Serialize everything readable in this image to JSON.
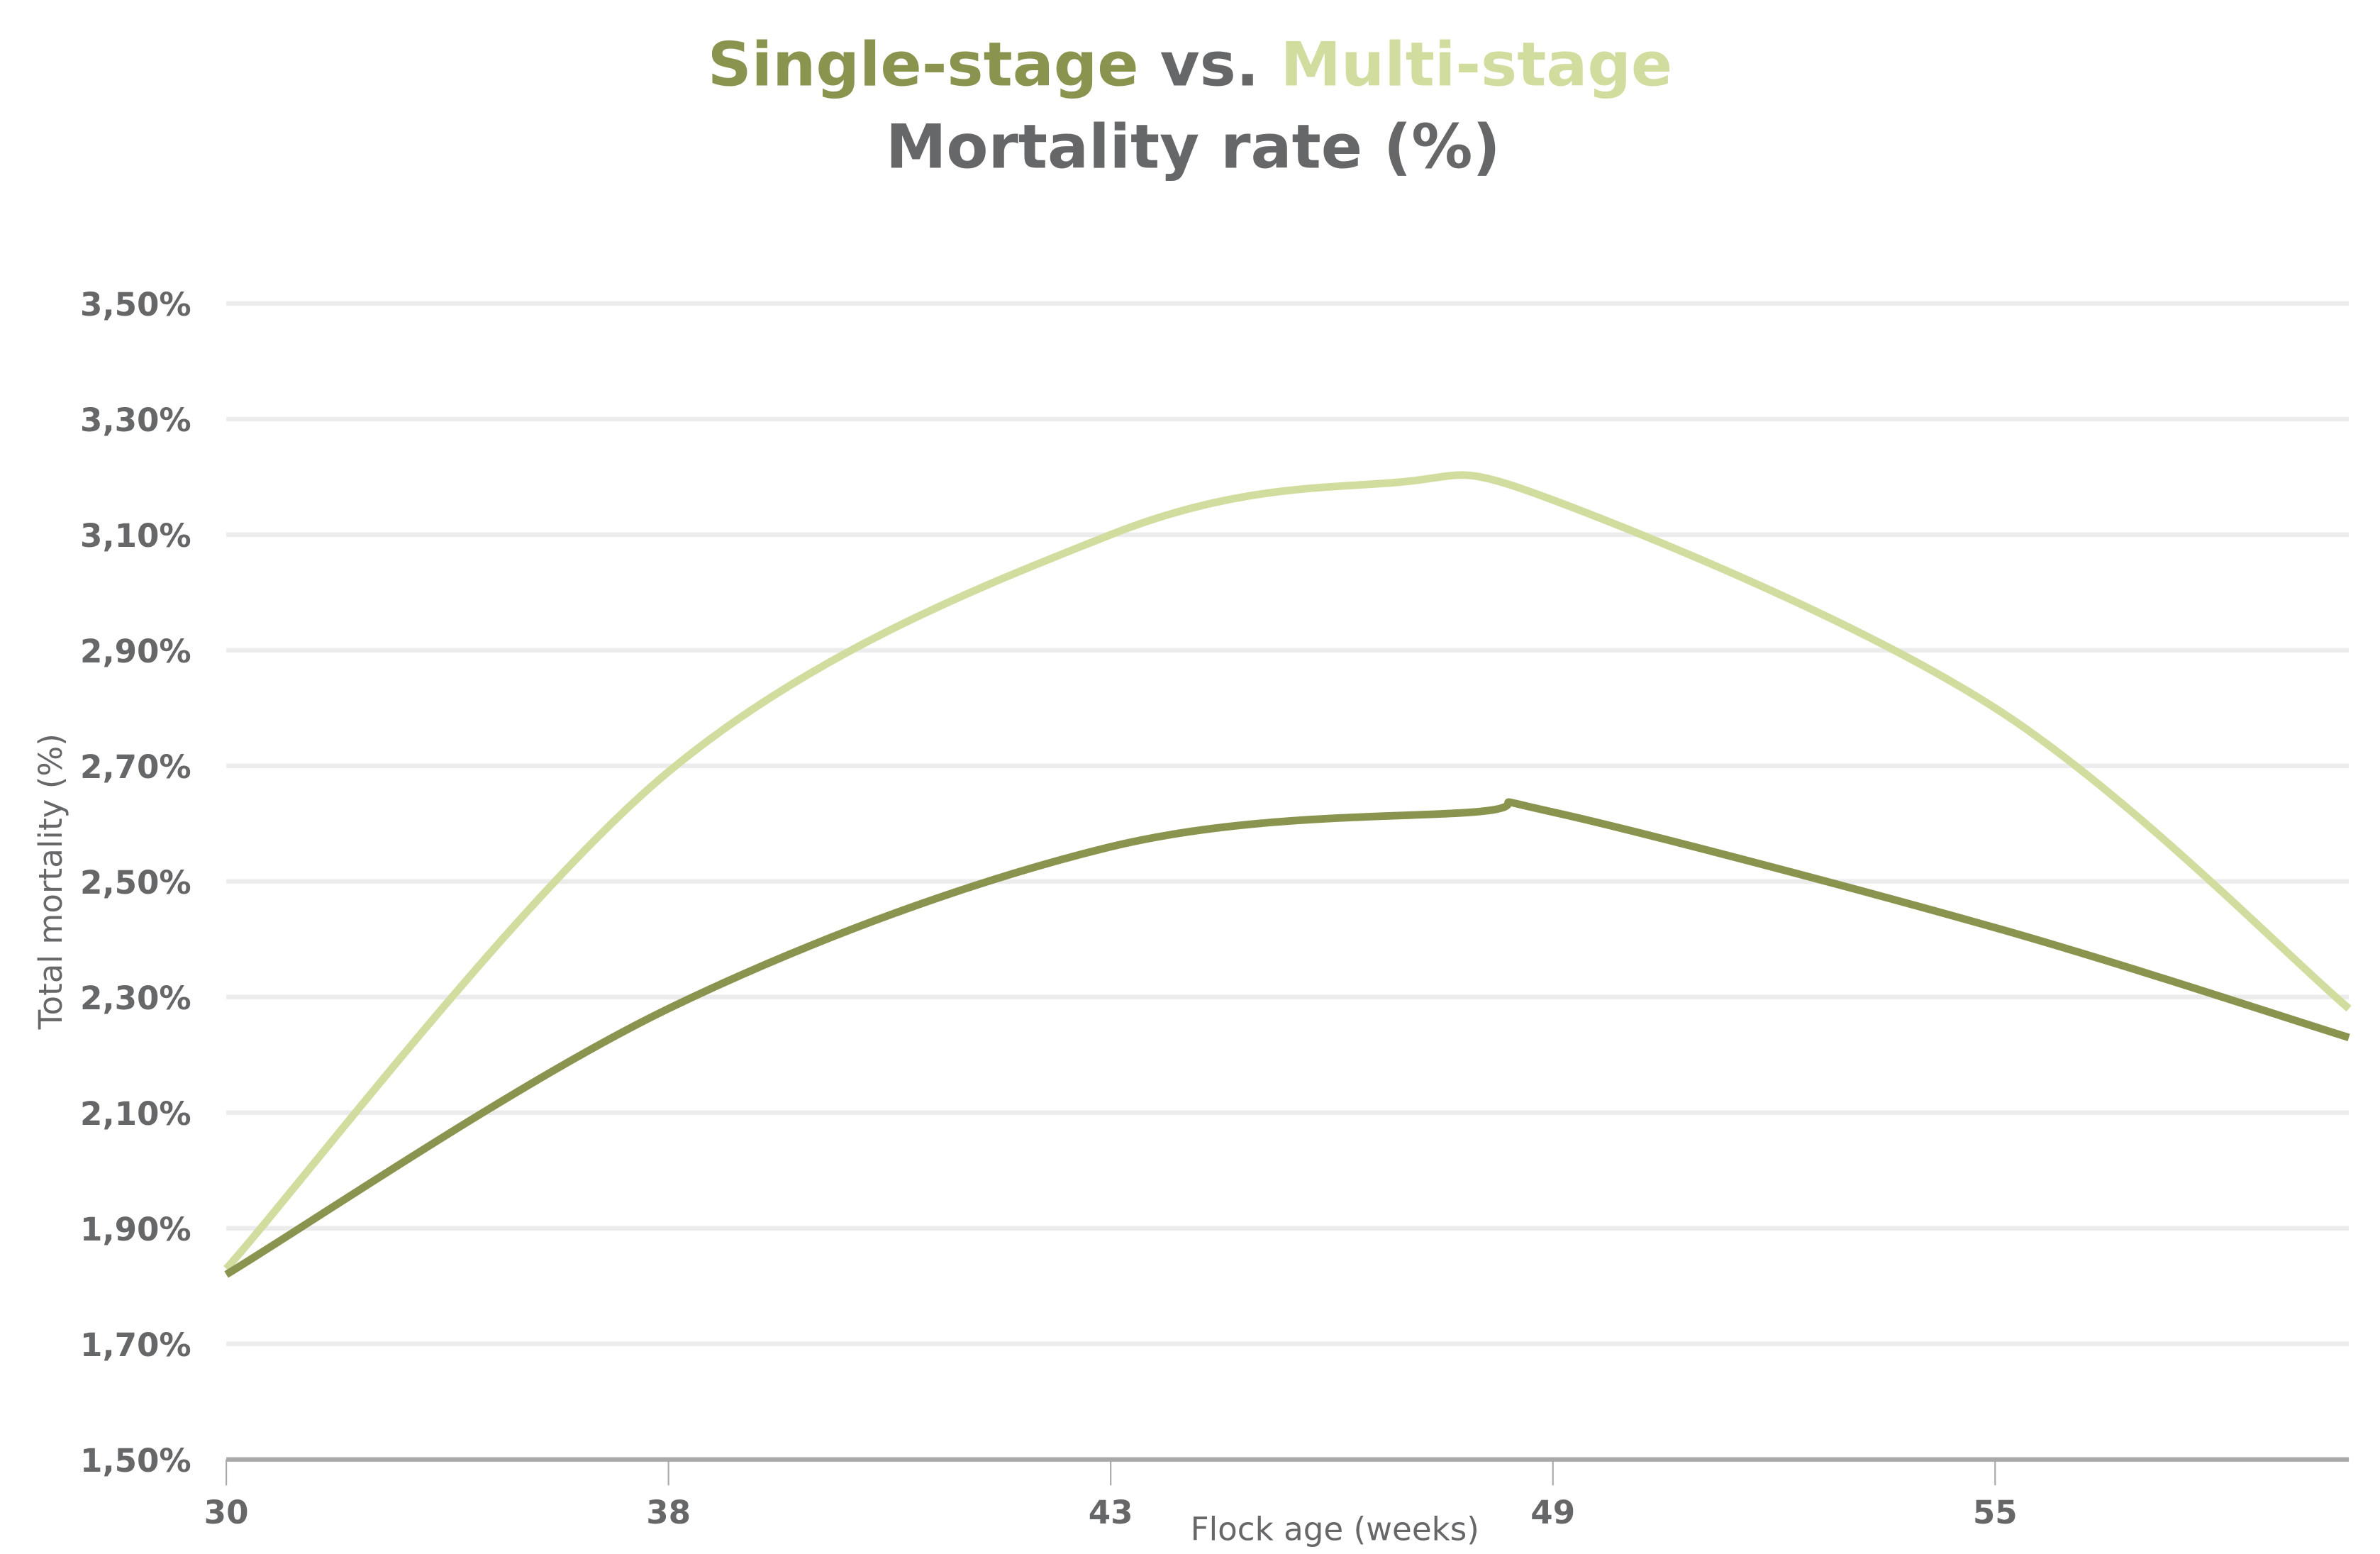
{
  "chart_data": {
    "type": "line",
    "title": {
      "part1": "Single-stage",
      "part2": "vs.",
      "part3": "Multi-stage",
      "line2": "Mortality rate (%)"
    },
    "xlabel": "Flock age (weeks)",
    "ylabel": "Total mortality (%)",
    "x_tick_labels": [
      "30",
      "38",
      "43",
      "49",
      "55"
    ],
    "x_index_range": [
      0,
      4.8
    ],
    "y_ticks": [
      1.5,
      1.7,
      1.9,
      2.1,
      2.3,
      2.5,
      2.7,
      2.9,
      3.1,
      3.3,
      3.5
    ],
    "y_tick_labels": [
      "1,50%",
      "1,70%",
      "1,90%",
      "2,10%",
      "2,30%",
      "2,50%",
      "2,70%",
      "2,90%",
      "3,10%",
      "3,30%",
      "3,50%"
    ],
    "ylim": [
      1.5,
      3.5
    ],
    "grid": true,
    "series": [
      {
        "name": "Multi-stage",
        "color": "#d1dd9f",
        "x_index": [
          0,
          1,
          2,
          2.64,
          3,
          4,
          4.8
        ],
        "values": [
          1.83,
          2.69,
          3.1,
          3.19,
          3.16,
          2.8,
          2.28
        ]
      },
      {
        "name": "Single-stage",
        "color": "#8a944e",
        "x_index": [
          0,
          1,
          2,
          2.82,
          3,
          4,
          4.8
        ],
        "values": [
          1.82,
          2.28,
          2.56,
          2.62,
          2.62,
          2.42,
          2.23
        ]
      }
    ]
  }
}
